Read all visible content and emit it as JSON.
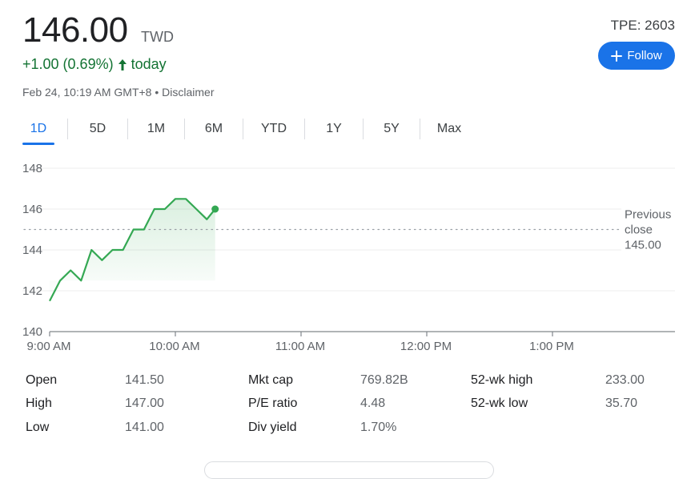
{
  "quote": {
    "price": "146.00",
    "currency": "TWD",
    "change": "+1.00 (0.69%)",
    "change_period": "today",
    "timestamp": "Feb 24, 10:19 AM GMT+8",
    "separator": "•",
    "disclaimer": "Disclaimer",
    "ticker": "TPE: 2603",
    "follow_label": "Follow",
    "accent_color": "#1a73e8",
    "positive_color": "#137333"
  },
  "tabs": [
    {
      "label": "1D",
      "active": true
    },
    {
      "label": "5D",
      "active": false
    },
    {
      "label": "1M",
      "active": false
    },
    {
      "label": "6M",
      "active": false
    },
    {
      "label": "YTD",
      "active": false
    },
    {
      "label": "1Y",
      "active": false
    },
    {
      "label": "5Y",
      "active": false
    },
    {
      "label": "Max",
      "active": false
    }
  ],
  "chart_data": {
    "type": "line",
    "ylim": [
      140,
      148
    ],
    "y_ticks": [
      "148",
      "146",
      "144",
      "142",
      "140"
    ],
    "x_ticks": [
      "9:00 AM",
      "10:00 AM",
      "11:00 AM",
      "12:00 PM",
      "1:00 PM"
    ],
    "x": [
      "9:00",
      "9:05",
      "9:10",
      "9:15",
      "9:20",
      "9:25",
      "9:30",
      "9:35",
      "9:40",
      "9:45",
      "9:50",
      "9:55",
      "10:00",
      "10:05",
      "10:10",
      "10:15",
      "10:19"
    ],
    "values": [
      141.5,
      142.5,
      143.0,
      142.5,
      144.0,
      143.5,
      144.0,
      144.0,
      145.0,
      145.0,
      146.0,
      146.0,
      146.5,
      146.5,
      146.0,
      145.5,
      146.0
    ],
    "reference_label": [
      "Previous",
      "close",
      "145.00"
    ],
    "reference_value": 145.0,
    "grid": true,
    "line_color": "#34a853"
  },
  "stats": [
    {
      "label": "Open",
      "value": "141.50"
    },
    {
      "label": "High",
      "value": "147.00"
    },
    {
      "label": "Low",
      "value": "141.00"
    },
    {
      "label": "Mkt cap",
      "value": "769.82B"
    },
    {
      "label": "P/E ratio",
      "value": "4.48"
    },
    {
      "label": "Div yield",
      "value": "1.70%"
    },
    {
      "label": "52-wk high",
      "value": "233.00"
    },
    {
      "label": "52-wk low",
      "value": "35.70"
    }
  ]
}
